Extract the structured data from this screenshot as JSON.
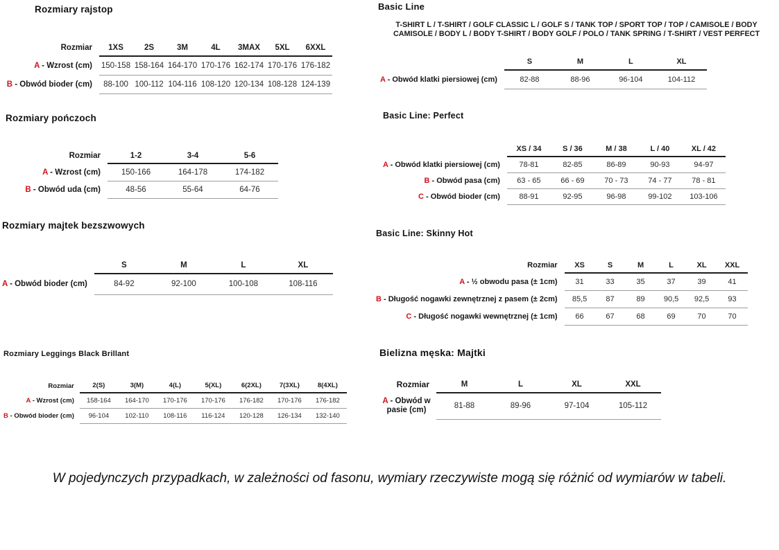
{
  "accent_color": "#d0111b",
  "footer_note": "W pojedynczych przypadkach, w zależności od fasonu, wymiary rzeczywiste mogą się różnić od wymiarów w tabeli.",
  "sections": {
    "rajstop": {
      "title": "Rozmiary rajstop",
      "table": {
        "corner": "Rozmiar",
        "columns": [
          "1XS",
          "2S",
          "3M",
          "4L",
          "3MAX",
          "5XL",
          "6XXL"
        ],
        "rows": [
          {
            "letter": "A",
            "label": "Wzrost (cm)",
            "values": [
              "150-158",
              "158-164",
              "164-170",
              "170-176",
              "162-174",
              "170-176",
              "176-182"
            ]
          },
          {
            "letter": "B",
            "label": "Obwód bioder (cm)",
            "values": [
              "88-100",
              "100-112",
              "104-116",
              "108-120",
              "120-134",
              "108-128",
              "124-139"
            ]
          }
        ]
      }
    },
    "ponczochy": {
      "title": "Rozmiary pończoch",
      "table": {
        "corner": "Rozmiar",
        "columns": [
          "1-2",
          "3-4",
          "5-6"
        ],
        "rows": [
          {
            "letter": "A",
            "label": "Wzrost (cm)",
            "values": [
              "150-166",
              "164-178",
              "174-182"
            ]
          },
          {
            "letter": "B",
            "label": "Obwód uda (cm)",
            "values": [
              "48-56",
              "55-64",
              "64-76"
            ]
          }
        ]
      }
    },
    "majtek_bezszwowe": {
      "title": "Rozmiary majtek bezszwowych",
      "table": {
        "corner": "",
        "columns": [
          "S",
          "M",
          "L",
          "XL"
        ],
        "rows": [
          {
            "letter": "A",
            "label": "Obwód bioder (cm)",
            "values": [
              "84-92",
              "92-100",
              "100-108",
              "108-116"
            ]
          }
        ]
      }
    },
    "leggings": {
      "title": "Rozmiary Leggings Black Brillant",
      "table": {
        "corner": "Rozmiar",
        "columns": [
          "2(S)",
          "3(M)",
          "4(L)",
          "5(XL)",
          "6(2XL)",
          "7(3XL)",
          "8(4XL)"
        ],
        "rows": [
          {
            "letter": "A",
            "label": "Wzrost (cm)",
            "values": [
              "158-164",
              "164-170",
              "170-176",
              "170-176",
              "176-182",
              "170-176",
              "176-182"
            ]
          },
          {
            "letter": "B",
            "label": "Obwód bioder (cm)",
            "values": [
              "96-104",
              "102-110",
              "108-116",
              "116-124",
              "120-128",
              "126-134",
              "132-140"
            ]
          }
        ]
      }
    },
    "basic_line": {
      "title": "Basic Line",
      "subtitle": "T-SHIRT L / T-SHIRT / GOLF CLASSIC L / GOLF S / TANK TOP / SPORT TOP / TOP / CAMISOLE / BODY CAMISOLE / BODY L / BODY T-SHIRT / BODY GOLF / POLO / TANK SPRING / T-SHIRT / VEST PERFECT",
      "table": {
        "corner": "",
        "columns": [
          "S",
          "M",
          "L",
          "XL"
        ],
        "rows": [
          {
            "letter": "A",
            "label": "Obwód klatki piersiowej (cm)",
            "values": [
              "82-88",
              "88-96",
              "96-104",
              "104-112"
            ]
          }
        ]
      }
    },
    "basic_perfect": {
      "title": "Basic Line: Perfect",
      "table": {
        "corner": "",
        "columns": [
          "XS / 34",
          "S / 36",
          "M / 38",
          "L / 40",
          "XL / 42"
        ],
        "rows": [
          {
            "letter": "A",
            "label": "Obwód klatki piersiowej (cm)",
            "values": [
              "78-81",
              "82-85",
              "86-89",
              "90-93",
              "94-97"
            ]
          },
          {
            "letter": "B",
            "label": "Obwód pasa (cm)",
            "values": [
              "63 - 65",
              "66 - 69",
              "70 - 73",
              "74 - 77",
              "78 - 81"
            ]
          },
          {
            "letter": "C",
            "label": "Obwód bioder (cm)",
            "values": [
              "88-91",
              "92-95",
              "96-98",
              "99-102",
              "103-106"
            ]
          }
        ]
      }
    },
    "skinny_hot": {
      "title": "Basic Line: Skinny Hot",
      "table": {
        "corner": "Rozmiar",
        "columns": [
          "XS",
          "S",
          "M",
          "L",
          "XL",
          "XXL"
        ],
        "rows": [
          {
            "letter": "A",
            "label": "½ obwodu pasa (± 1cm)",
            "values": [
              "31",
              "33",
              "35",
              "37",
              "39",
              "41"
            ]
          },
          {
            "letter": "B",
            "label": "Długość nogawki zewnętrznej z pasem (± 2cm)",
            "values": [
              "85,5",
              "87",
              "89",
              "90,5",
              "92,5",
              "93"
            ]
          },
          {
            "letter": "C",
            "label": "Długość nogawki wewnętrznej (± 1cm)",
            "values": [
              "66",
              "67",
              "68",
              "69",
              "70",
              "70"
            ]
          }
        ]
      }
    },
    "bielizna_meska": {
      "title": "Bielizna męska: Majtki",
      "table": {
        "corner": "Rozmiar",
        "columns": [
          "M",
          "L",
          "XL",
          "XXL"
        ],
        "rows": [
          {
            "letter": "A",
            "label": "Obwód w pasie (cm)",
            "values": [
              "81-88",
              "89-96",
              "97-104",
              "105-112"
            ]
          }
        ]
      }
    }
  }
}
